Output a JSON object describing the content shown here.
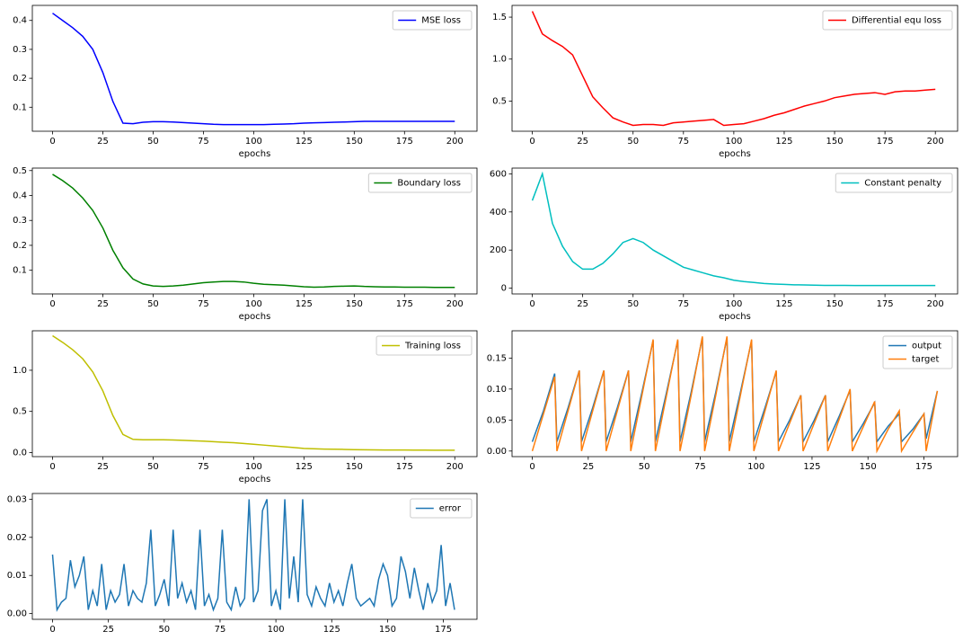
{
  "chart_data": [
    {
      "type": "line",
      "xlabel": "epochs",
      "legend": "upper right",
      "x": [
        0,
        5,
        10,
        15,
        20,
        25,
        30,
        35,
        40,
        45,
        50,
        55,
        60,
        65,
        70,
        75,
        80,
        85,
        90,
        95,
        100,
        105,
        110,
        115,
        120,
        125,
        130,
        135,
        140,
        145,
        150,
        155,
        160,
        165,
        170,
        175,
        180,
        185,
        190,
        195,
        200
      ],
      "series": [
        {
          "name": "MSE loss",
          "color": "#0000ff",
          "values": [
            0.425,
            0.4,
            0.375,
            0.345,
            0.3,
            0.22,
            0.12,
            0.045,
            0.043,
            0.048,
            0.05,
            0.05,
            0.049,
            0.047,
            0.045,
            0.043,
            0.041,
            0.04,
            0.04,
            0.04,
            0.04,
            0.04,
            0.041,
            0.042,
            0.043,
            0.045,
            0.046,
            0.047,
            0.048,
            0.049,
            0.05,
            0.051,
            0.051,
            0.051,
            0.051,
            0.051,
            0.051,
            0.051,
            0.051,
            0.051,
            0.051
          ]
        }
      ],
      "xlim": [
        -10.05,
        211.05
      ],
      "ylim": [
        0.017,
        0.452
      ],
      "xticks": [
        0,
        25,
        50,
        75,
        100,
        125,
        150,
        175,
        200
      ],
      "yticks": [
        0.1,
        0.2,
        0.3,
        0.4
      ]
    },
    {
      "type": "line",
      "xlabel": "epochs",
      "legend": "upper right",
      "x": [
        0,
        5,
        10,
        15,
        20,
        25,
        30,
        35,
        40,
        45,
        50,
        55,
        60,
        65,
        70,
        75,
        80,
        85,
        90,
        95,
        100,
        105,
        110,
        115,
        120,
        125,
        130,
        135,
        140,
        145,
        150,
        155,
        160,
        165,
        170,
        175,
        180,
        185,
        190,
        195,
        200
      ],
      "series": [
        {
          "name": "Differential equ loss",
          "color": "#ff0000",
          "values": [
            1.57,
            1.3,
            1.22,
            1.15,
            1.05,
            0.8,
            0.55,
            0.42,
            0.3,
            0.25,
            0.21,
            0.22,
            0.22,
            0.21,
            0.24,
            0.25,
            0.26,
            0.27,
            0.28,
            0.21,
            0.22,
            0.23,
            0.26,
            0.29,
            0.33,
            0.36,
            0.4,
            0.44,
            0.47,
            0.5,
            0.54,
            0.56,
            0.58,
            0.59,
            0.6,
            0.58,
            0.61,
            0.62,
            0.62,
            0.63,
            0.64
          ]
        }
      ],
      "xlim": [
        -10.05,
        211.05
      ],
      "ylim": [
        0.14,
        1.64
      ],
      "xticks": [
        0,
        25,
        50,
        75,
        100,
        125,
        150,
        175,
        200
      ],
      "yticks": [
        0.5,
        {
          "value": 1,
          "label": "1.0"
        },
        1.5
      ]
    },
    {
      "type": "line",
      "xlabel": "epochs",
      "legend": "upper right",
      "x": [
        0,
        5,
        10,
        15,
        20,
        25,
        30,
        35,
        40,
        45,
        50,
        55,
        60,
        65,
        70,
        75,
        80,
        85,
        90,
        95,
        100,
        105,
        110,
        115,
        120,
        125,
        130,
        135,
        140,
        145,
        150,
        155,
        160,
        165,
        170,
        175,
        180,
        185,
        190,
        195,
        200
      ],
      "series": [
        {
          "name": "Boundary loss",
          "color": "#008000",
          "values": [
            0.485,
            0.46,
            0.43,
            0.39,
            0.34,
            0.27,
            0.18,
            0.11,
            0.065,
            0.045,
            0.037,
            0.035,
            0.037,
            0.04,
            0.045,
            0.05,
            0.053,
            0.055,
            0.055,
            0.053,
            0.048,
            0.044,
            0.042,
            0.04,
            0.037,
            0.034,
            0.032,
            0.033,
            0.035,
            0.036,
            0.037,
            0.035,
            0.034,
            0.033,
            0.033,
            0.032,
            0.032,
            0.032,
            0.031,
            0.031,
            0.031
          ]
        }
      ],
      "xlim": [
        -10.05,
        211.05
      ],
      "ylim": [
        0.005,
        0.51
      ],
      "xticks": [
        0,
        25,
        50,
        75,
        100,
        125,
        150,
        175,
        200
      ],
      "yticks": [
        0.1,
        0.2,
        0.3,
        0.4,
        0.5
      ]
    },
    {
      "type": "line",
      "xlabel": "epochs",
      "legend": "upper right",
      "x": [
        0,
        5,
        10,
        15,
        20,
        25,
        30,
        35,
        40,
        45,
        50,
        55,
        60,
        65,
        70,
        75,
        80,
        85,
        90,
        95,
        100,
        105,
        110,
        115,
        120,
        125,
        130,
        135,
        140,
        145,
        150,
        155,
        160,
        165,
        170,
        175,
        180,
        185,
        190,
        195,
        200
      ],
      "series": [
        {
          "name": "Constant penalty",
          "color": "#00bfbf",
          "values": [
            460,
            600,
            340,
            220,
            140,
            100,
            100,
            130,
            180,
            240,
            260,
            240,
            200,
            170,
            140,
            110,
            95,
            80,
            65,
            55,
            42,
            35,
            30,
            25,
            22,
            20,
            18,
            17,
            16,
            15,
            15,
            15,
            14,
            14,
            14,
            14,
            14,
            14,
            14,
            14,
            14
          ]
        }
      ],
      "xlim": [
        -10.05,
        211.05
      ],
      "ylim": [
        -30,
        630
      ],
      "xticks": [
        0,
        25,
        50,
        75,
        100,
        125,
        150,
        175,
        200
      ],
      "yticks": [
        0,
        200,
        400,
        600
      ]
    },
    {
      "type": "line",
      "xlabel": "epochs",
      "legend": "upper right",
      "x": [
        0,
        5,
        10,
        15,
        20,
        25,
        30,
        35,
        40,
        45,
        50,
        55,
        60,
        65,
        70,
        75,
        80,
        85,
        90,
        95,
        100,
        105,
        110,
        115,
        120,
        125,
        130,
        135,
        140,
        145,
        150,
        155,
        160,
        165,
        170,
        175,
        180,
        185,
        190,
        195,
        200
      ],
      "series": [
        {
          "name": "Training loss",
          "color": "#bfbf00",
          "values": [
            1.42,
            1.34,
            1.25,
            1.14,
            0.98,
            0.75,
            0.45,
            0.22,
            0.16,
            0.155,
            0.155,
            0.155,
            0.152,
            0.148,
            0.142,
            0.138,
            0.132,
            0.125,
            0.12,
            0.11,
            0.1,
            0.09,
            0.08,
            0.07,
            0.06,
            0.05,
            0.045,
            0.042,
            0.04,
            0.038,
            0.035,
            0.033,
            0.032,
            0.031,
            0.03,
            0.03,
            0.029,
            0.029,
            0.028,
            0.028,
            0.028
          ]
        }
      ],
      "xlim": [
        -10.05,
        211.05
      ],
      "ylim": [
        -0.05,
        1.48
      ],
      "xticks": [
        0,
        25,
        50,
        75,
        100,
        125,
        150,
        175,
        200
      ],
      "yticks": [
        {
          "value": 0,
          "label": "0.0"
        },
        0.5,
        {
          "value": 1,
          "label": "1.0"
        }
      ]
    },
    {
      "type": "line",
      "legend": "upper right",
      "x": [
        0,
        5,
        10,
        11,
        16,
        21,
        22,
        27,
        32,
        33,
        38,
        43,
        44,
        49,
        54,
        55,
        60,
        65,
        66,
        71,
        76,
        77,
        82,
        87,
        88,
        93,
        98,
        99,
        104,
        109,
        110,
        115,
        120,
        121,
        126,
        131,
        132,
        137,
        142,
        143,
        148,
        153,
        154,
        159,
        164,
        165,
        170,
        175,
        176,
        181
      ],
      "series": [
        {
          "name": "output",
          "color": "#1f77b4",
          "values": [
            0.015,
            0.065,
            0.125,
            0.015,
            0.07,
            0.13,
            0.015,
            0.07,
            0.13,
            0.015,
            0.07,
            0.13,
            0.015,
            0.095,
            0.178,
            0.015,
            0.095,
            0.178,
            0.015,
            0.095,
            0.183,
            0.015,
            0.095,
            0.183,
            0.015,
            0.095,
            0.178,
            0.015,
            0.07,
            0.128,
            0.015,
            0.05,
            0.09,
            0.015,
            0.05,
            0.09,
            0.015,
            0.055,
            0.098,
            0.015,
            0.045,
            0.078,
            0.015,
            0.04,
            0.06,
            0.015,
            0.035,
            0.06,
            0.02,
            0.097
          ]
        },
        {
          "name": "target",
          "color": "#ff7f0e",
          "values": [
            0.0,
            0.06,
            0.12,
            0.0,
            0.065,
            0.13,
            0.0,
            0.065,
            0.13,
            0.0,
            0.065,
            0.13,
            0.0,
            0.09,
            0.18,
            0.0,
            0.09,
            0.18,
            0.0,
            0.09,
            0.185,
            0.0,
            0.09,
            0.185,
            0.0,
            0.09,
            0.18,
            0.0,
            0.065,
            0.13,
            0.0,
            0.045,
            0.09,
            0.0,
            0.045,
            0.09,
            0.0,
            0.05,
            0.1,
            0.0,
            0.04,
            0.08,
            0.0,
            0.035,
            0.065,
            0.0,
            0.03,
            0.06,
            0.0,
            0.097
          ]
        }
      ],
      "xlim": [
        -9.05,
        190.05
      ],
      "ylim": [
        -0.009,
        0.194
      ],
      "xticks": [
        0,
        25,
        50,
        75,
        100,
        125,
        150,
        175
      ],
      "yticks": [
        {
          "value": 0,
          "label": "0.00"
        },
        {
          "value": 0.05,
          "label": "0.05"
        },
        {
          "value": 0.1,
          "label": "0.10"
        },
        {
          "value": 0.15,
          "label": "0.15"
        }
      ]
    },
    {
      "type": "line",
      "legend": "upper right",
      "x": [
        0,
        2,
        4,
        6,
        8,
        10,
        12,
        14,
        16,
        18,
        20,
        22,
        24,
        26,
        28,
        30,
        32,
        34,
        36,
        38,
        40,
        42,
        44,
        46,
        48,
        50,
        52,
        54,
        56,
        58,
        60,
        62,
        64,
        66,
        68,
        70,
        72,
        74,
        76,
        78,
        80,
        82,
        84,
        86,
        88,
        90,
        92,
        94,
        96,
        98,
        100,
        102,
        104,
        106,
        108,
        110,
        112,
        114,
        116,
        118,
        120,
        122,
        124,
        126,
        128,
        130,
        132,
        134,
        136,
        138,
        140,
        142,
        144,
        146,
        148,
        150,
        152,
        154,
        156,
        158,
        160,
        162,
        164,
        166,
        168,
        170,
        172,
        174,
        176,
        178,
        180
      ],
      "series": [
        {
          "name": "error",
          "color": "#1f77b4",
          "values": [
            0.0155,
            0.001,
            0.003,
            0.004,
            0.014,
            0.007,
            0.01,
            0.015,
            0.001,
            0.006,
            0.002,
            0.013,
            0.001,
            0.006,
            0.003,
            0.005,
            0.013,
            0.002,
            0.006,
            0.004,
            0.003,
            0.008,
            0.022,
            0.002,
            0.005,
            0.009,
            0.002,
            0.022,
            0.004,
            0.008,
            0.003,
            0.006,
            0.001,
            0.022,
            0.002,
            0.005,
            0.001,
            0.004,
            0.022,
            0.003,
            0.001,
            0.007,
            0.002,
            0.004,
            0.03,
            0.003,
            0.006,
            0.027,
            0.03,
            0.002,
            0.006,
            0.001,
            0.03,
            0.004,
            0.015,
            0.003,
            0.03,
            0.005,
            0.002,
            0.007,
            0.004,
            0.002,
            0.008,
            0.003,
            0.006,
            0.002,
            0.008,
            0.013,
            0.004,
            0.002,
            0.003,
            0.004,
            0.002,
            0.009,
            0.013,
            0.01,
            0.002,
            0.004,
            0.015,
            0.011,
            0.004,
            0.012,
            0.006,
            0.001,
            0.008,
            0.003,
            0.006,
            0.018,
            0.002,
            0.008,
            0.001
          ]
        }
      ],
      "xlim": [
        -9.05,
        190.05
      ],
      "ylim": [
        -0.0015,
        0.0315
      ],
      "xticks": [
        0,
        25,
        50,
        75,
        100,
        125,
        150,
        175
      ],
      "yticks": [
        {
          "value": 0,
          "label": "0.00"
        },
        {
          "value": 0.01,
          "label": "0.01"
        },
        {
          "value": 0.02,
          "label": "0.02"
        },
        {
          "value": 0.03,
          "label": "0.03"
        }
      ]
    }
  ]
}
